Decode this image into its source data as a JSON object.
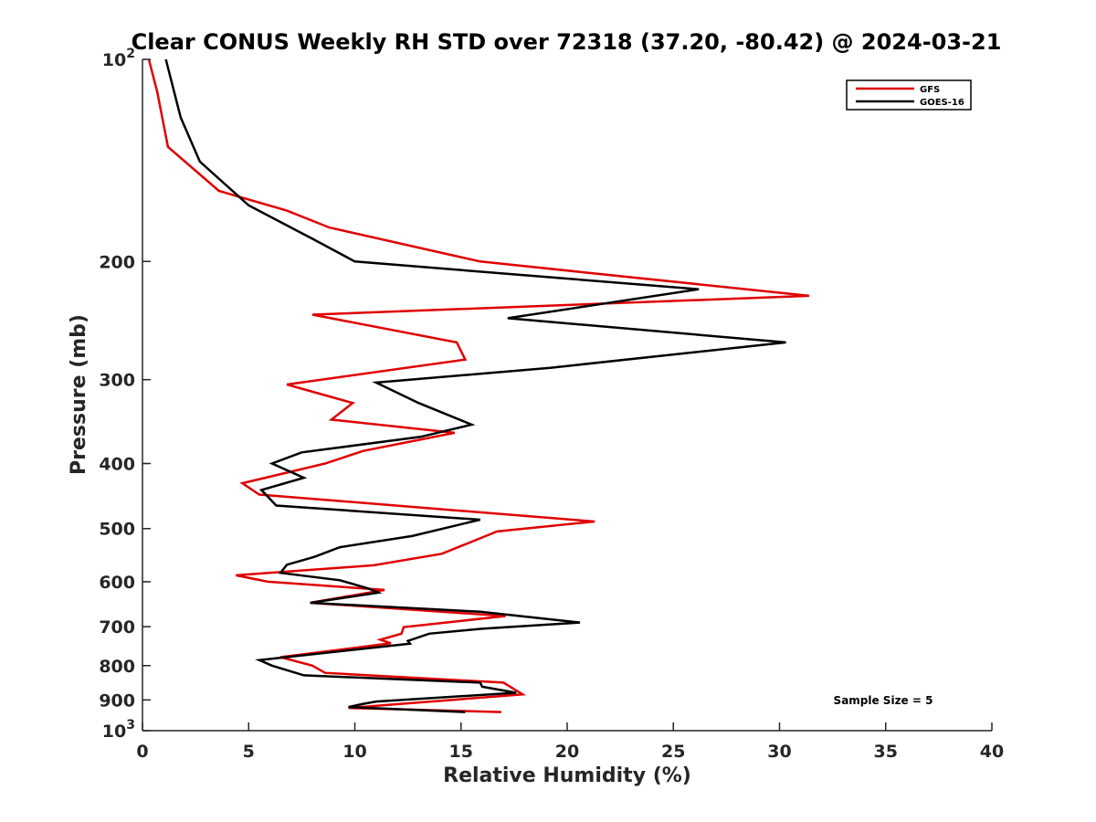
{
  "chart_data": {
    "type": "line",
    "title": "Clear CONUS Weekly RH STD over 72318 (37.20, -80.42) @ 2024-03-21",
    "xlabel": "Relative Humidity (%)",
    "ylabel": "Pressure (mb)",
    "xlim": [
      0,
      40
    ],
    "ylim": [
      100,
      1000
    ],
    "y_scale": "log",
    "y_reversed": true,
    "x_ticks": [
      "0",
      "5",
      "10",
      "15",
      "20",
      "25",
      "30",
      "35",
      "40"
    ],
    "y_ticks": [
      {
        "value": 100,
        "base": "10",
        "exp": "2"
      },
      {
        "value": 200,
        "label": "200"
      },
      {
        "value": 300,
        "label": "300"
      },
      {
        "value": 400,
        "label": "400"
      },
      {
        "value": 500,
        "label": "500"
      },
      {
        "value": 600,
        "label": "600"
      },
      {
        "value": 700,
        "label": "700"
      },
      {
        "value": 800,
        "label": "800"
      },
      {
        "value": 900,
        "label": "900"
      },
      {
        "value": 1000,
        "base": "10",
        "exp": "3"
      }
    ],
    "grid": false,
    "legend_position": "top-right",
    "annotation": "Sample Size = 5",
    "series": [
      {
        "name": "GFS",
        "color": "#e00000",
        "points": [
          [
            0.3,
            100
          ],
          [
            0.7,
            112
          ],
          [
            1.2,
            135
          ],
          [
            3.6,
            157
          ],
          [
            6.8,
            168
          ],
          [
            8.8,
            178
          ],
          [
            15.9,
            200
          ],
          [
            31.4,
            225
          ],
          [
            8.0,
            240
          ],
          [
            14.8,
            264
          ],
          [
            15.2,
            280
          ],
          [
            6.8,
            305
          ],
          [
            9.9,
            325
          ],
          [
            8.9,
            344
          ],
          [
            14.7,
            360
          ],
          [
            10.4,
            383
          ],
          [
            8.6,
            400
          ],
          [
            4.7,
            428
          ],
          [
            5.5,
            445
          ],
          [
            21.3,
            488
          ],
          [
            16.7,
            505
          ],
          [
            14.1,
            545
          ],
          [
            10.9,
            567
          ],
          [
            4.4,
            587
          ],
          [
            5.9,
            600
          ],
          [
            11.4,
            617
          ],
          [
            7.9,
            645
          ],
          [
            17.1,
            675
          ],
          [
            12.3,
            701
          ],
          [
            12.2,
            717
          ],
          [
            11.2,
            732
          ],
          [
            11.7,
            741
          ],
          [
            6.5,
            777
          ],
          [
            8.0,
            800
          ],
          [
            8.6,
            820
          ],
          [
            17.0,
            848
          ],
          [
            17.9,
            883
          ],
          [
            9.7,
            925
          ],
          [
            16.9,
            938
          ]
        ]
      },
      {
        "name": "GOES-16",
        "color": "#000000",
        "points": [
          [
            1.1,
            100
          ],
          [
            1.8,
            122
          ],
          [
            2.7,
            142
          ],
          [
            5.0,
            165
          ],
          [
            8.0,
            185
          ],
          [
            10.0,
            200
          ],
          [
            26.2,
            220
          ],
          [
            17.2,
            243
          ],
          [
            30.3,
            264
          ],
          [
            19.2,
            288
          ],
          [
            11.0,
            303
          ],
          [
            13.0,
            325
          ],
          [
            15.5,
            350
          ],
          [
            13.1,
            365
          ],
          [
            7.5,
            385
          ],
          [
            6.1,
            400
          ],
          [
            7.6,
            420
          ],
          [
            5.6,
            438
          ],
          [
            6.3,
            462
          ],
          [
            15.9,
            485
          ],
          [
            12.7,
            513
          ],
          [
            9.3,
            533
          ],
          [
            8.1,
            551
          ],
          [
            6.8,
            566
          ],
          [
            6.5,
            582
          ],
          [
            9.3,
            597
          ],
          [
            10.7,
            615
          ],
          [
            11.1,
            623
          ],
          [
            7.9,
            645
          ],
          [
            15.9,
            665
          ],
          [
            20.6,
            690
          ],
          [
            16.0,
            705
          ],
          [
            13.5,
            717
          ],
          [
            12.5,
            735
          ],
          [
            12.6,
            742
          ],
          [
            5.5,
            785
          ],
          [
            6.1,
            800
          ],
          [
            7.6,
            827
          ],
          [
            15.9,
            848
          ],
          [
            16.0,
            860
          ],
          [
            17.6,
            878
          ],
          [
            11.0,
            905
          ],
          [
            10.4,
            912
          ],
          [
            9.7,
            922
          ],
          [
            15.2,
            938
          ]
        ]
      }
    ]
  }
}
